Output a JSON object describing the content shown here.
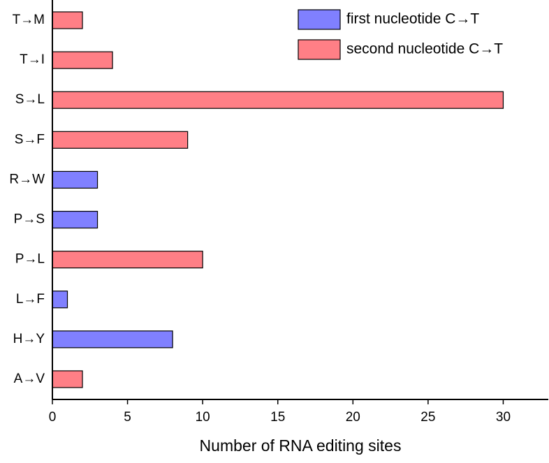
{
  "chart_data": {
    "type": "barh",
    "x_label": "Number of RNA editing sites",
    "categories": [
      "T→M",
      "T→I",
      "S→L",
      "S→F",
      "R→W",
      "P→S",
      "P→L",
      "L→F",
      "H→Y",
      "A→V"
    ],
    "series": [
      {
        "name": "first nucleotide C→T",
        "color": "#8080ff",
        "values": [
          null,
          null,
          null,
          null,
          3,
          3,
          null,
          1,
          8,
          null
        ]
      },
      {
        "name": "second nucleotide C→T",
        "color": "#ff7f86",
        "values": [
          2,
          4,
          30,
          9,
          null,
          null,
          10,
          null,
          null,
          2
        ]
      }
    ],
    "xlim": [
      0,
      33
    ],
    "xticks": [
      0,
      5,
      10,
      15,
      20,
      25,
      30
    ],
    "legend": "upper right"
  }
}
